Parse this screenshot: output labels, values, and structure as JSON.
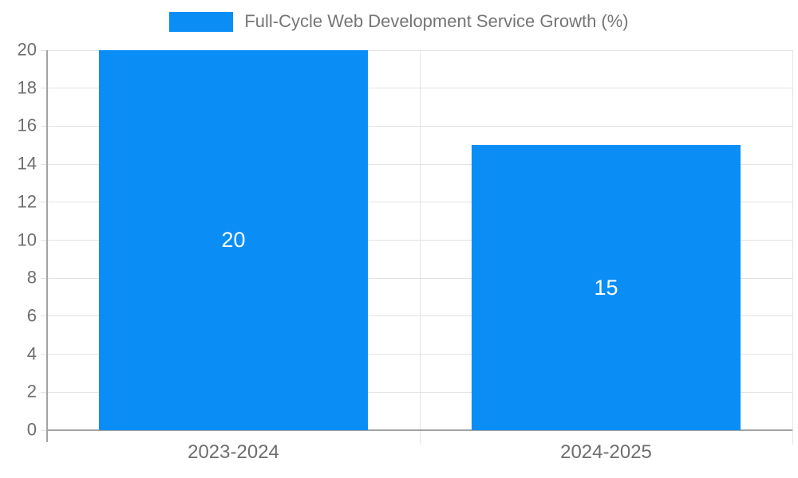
{
  "chart_data": {
    "type": "bar",
    "title": "Full-Cycle Web Development Service Growth (%)",
    "categories": [
      "2023-2024",
      "2024-2025"
    ],
    "series": [
      {
        "name": "Full-Cycle Web Development Service Growth (%)",
        "values": [
          20,
          15
        ]
      }
    ],
    "data_labels": [
      "20",
      "15"
    ],
    "xlabel": "",
    "ylabel": "",
    "ylim": [
      0,
      20
    ],
    "ytick_step": 2,
    "yticks": [
      0,
      2,
      4,
      6,
      8,
      10,
      12,
      14,
      16,
      18,
      20
    ],
    "grid": true,
    "legend_position": "top-center",
    "colors": {
      "bar": "#0A8EF6",
      "bar_label": "#FFFFFF",
      "gridline": "#E3E3E3",
      "axis_line": "#A3A3A3",
      "baseline": "#A3A3A3",
      "tick_label": "#6E6E6E",
      "legend_text": "#757575",
      "background": "#FFFFFF"
    }
  }
}
